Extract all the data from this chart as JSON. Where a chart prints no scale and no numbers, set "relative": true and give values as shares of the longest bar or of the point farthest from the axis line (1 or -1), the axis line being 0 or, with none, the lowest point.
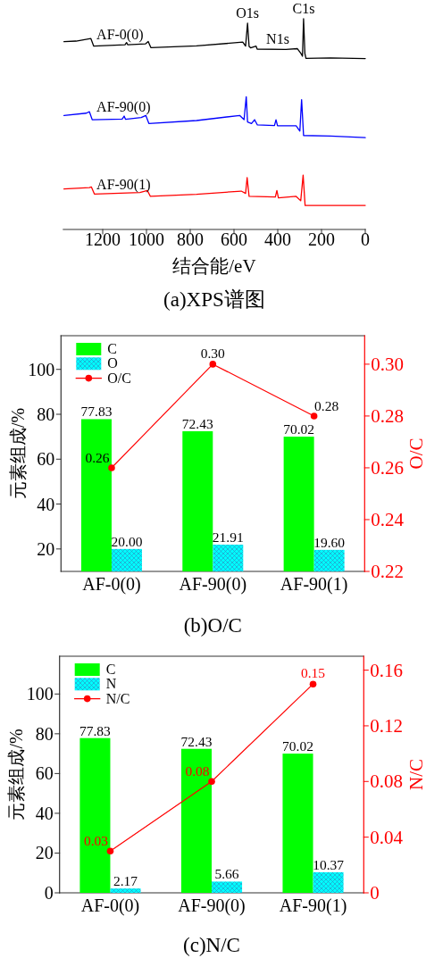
{
  "chart_data": [
    {
      "type": "line",
      "title": "(a)XPS谱图",
      "xlabel": "结合能/eV",
      "relative": true,
      "xlim": [
        1380,
        0
      ],
      "xticks": [
        1200,
        1000,
        800,
        600,
        400,
        200,
        0
      ],
      "series": [
        {
          "name": "AF-0(0)",
          "color": "#000000",
          "x": [
            1377,
            1322,
            1254,
            1241,
            1098,
            1091,
            1086,
            1004,
            992,
            980,
            771,
            560,
            547,
            538,
            531,
            524,
            499,
            494,
            363,
            310,
            294,
            287,
            282,
            276,
            271,
            159,
            0
          ],
          "values": [
            0.891,
            0.894,
            0.906,
            0.87,
            0.877,
            0.887,
            0.877,
            0.881,
            0.892,
            0.863,
            0.871,
            0.889,
            0.87,
            0.979,
            0.869,
            0.862,
            0.87,
            0.856,
            0.854,
            0.858,
            0.835,
            0.822,
            1.0,
            0.835,
            0.812,
            0.814,
            0.811
          ]
        },
        {
          "name": "AF-90(0)",
          "color": "#0000ff",
          "x": [
            1377,
            1275,
            1261,
            1248,
            1111,
            1102,
            1096,
            1024,
            1003,
            989,
            771,
            574,
            554,
            544,
            538,
            520,
            506,
            493,
            415,
            408,
            401,
            316,
            299,
            291,
            282,
            159,
            0
          ],
          "values": [
            0.541,
            0.552,
            0.559,
            0.521,
            0.524,
            0.538,
            0.523,
            0.531,
            0.541,
            0.503,
            0.517,
            0.541,
            0.521,
            0.63,
            0.51,
            0.503,
            0.521,
            0.496,
            0.493,
            0.521,
            0.492,
            0.492,
            0.467,
            0.616,
            0.446,
            0.443,
            0.436
          ]
        },
        {
          "name": "AF-90(1)",
          "color": "#ff0000",
          "x": [
            1377,
            1261,
            1252,
            1238,
            1030,
            996,
            982,
            771,
            567,
            547,
            540,
            531,
            411,
            404,
            397,
            316,
            295,
            284,
            275,
            0
          ],
          "values": [
            0.192,
            0.199,
            0.202,
            0.168,
            0.175,
            0.185,
            0.157,
            0.167,
            0.182,
            0.171,
            0.246,
            0.157,
            0.154,
            0.185,
            0.15,
            0.157,
            0.136,
            0.258,
            0.114,
            0.114
          ]
        }
      ],
      "annotations": [
        {
          "text": "O1s",
          "x": 538,
          "y": 0.979
        },
        {
          "text": "N1s",
          "x": 400,
          "y": 0.855
        },
        {
          "text": "C1s",
          "x": 282,
          "y": 1.0
        }
      ]
    },
    {
      "type": "bar",
      "title": "(b)O/C",
      "ylabel": "元素组成/%",
      "y2label": "O/C",
      "categories": [
        "AF-0(0)",
        "AF-90(0)",
        "AF-90(1)"
      ],
      "series": [
        {
          "name": "C",
          "color": "#00ff00",
          "values": [
            77.83,
            72.43,
            70.02
          ],
          "value_labels": [
            "77.83",
            "72.43",
            "70.02"
          ]
        },
        {
          "name": "O",
          "color": "#00ffff",
          "values": [
            20.0,
            21.91,
            19.6
          ],
          "value_labels": [
            "20.00",
            "21.91",
            "19.60"
          ]
        },
        {
          "name": "O/C",
          "type": "line",
          "axis": "y2",
          "color": "#ff0000",
          "values": [
            0.26,
            0.3,
            0.28
          ],
          "value_labels": [
            "0.26",
            "0.30",
            "0.28"
          ]
        }
      ],
      "ylim": [
        10,
        115
      ],
      "yticks": [
        20,
        40,
        60,
        80,
        100
      ],
      "y2lim": [
        0.22,
        0.311
      ],
      "y2ticks": [
        0.22,
        0.24,
        0.26,
        0.28,
        {
          "value": 0.3,
          "label": "0.30"
        }
      ],
      "legend": "top left",
      "marker": "circle"
    },
    {
      "type": "bar",
      "title": "(c)N/C",
      "ylabel": "元素组成/%",
      "y2label": "N/C",
      "categories": [
        "AF-0(0)",
        "AF-90(0)",
        "AF-90(1)"
      ],
      "series": [
        {
          "name": "C",
          "color": "#00ff00",
          "values": [
            77.83,
            72.43,
            70.02
          ],
          "value_labels": [
            "77.83",
            "72.43",
            "70.02"
          ]
        },
        {
          "name": "N",
          "color": "#00ffff",
          "values": [
            2.17,
            5.66,
            10.37
          ],
          "value_labels": [
            "2.17",
            "5.66",
            "10.37"
          ]
        },
        {
          "name": "N/C",
          "type": "line",
          "axis": "y2",
          "color": "#ff0000",
          "values": [
            0.03,
            0.08,
            0.15
          ],
          "value_labels": [
            "0.03",
            "0.08",
            "0.15"
          ]
        }
      ],
      "ylim": [
        0,
        119
      ],
      "yticks": [
        0,
        20,
        40,
        60,
        80,
        100
      ],
      "y2lim": [
        0,
        0.17
      ],
      "y2ticks": [
        0,
        0.04,
        0.08,
        0.12,
        0.16
      ],
      "legend": "top left",
      "marker": "circle"
    }
  ]
}
